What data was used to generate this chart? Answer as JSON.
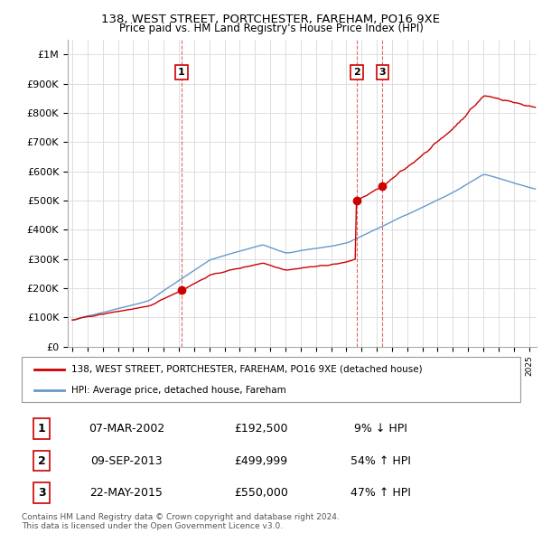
{
  "title": "138, WEST STREET, PORTCHESTER, FAREHAM, PO16 9XE",
  "subtitle": "Price paid vs. HM Land Registry's House Price Index (HPI)",
  "ylim": [
    0,
    1050000
  ],
  "yticks": [
    0,
    100000,
    200000,
    300000,
    400000,
    500000,
    600000,
    700000,
    800000,
    900000,
    1000000
  ],
  "ytick_labels": [
    "£0",
    "£100K",
    "£200K",
    "£300K",
    "£400K",
    "£500K",
    "£600K",
    "£700K",
    "£800K",
    "£900K",
    "£1M"
  ],
  "xlim_start": 1994.7,
  "xlim_end": 2025.5,
  "transactions": [
    {
      "num": 1,
      "date": "07-MAR-2002",
      "price": 192500,
      "year": 2002.18,
      "pct": "9%",
      "dir": "↓"
    },
    {
      "num": 2,
      "date": "09-SEP-2013",
      "price": 499999,
      "year": 2013.69,
      "pct": "54%",
      "dir": "↑"
    },
    {
      "num": 3,
      "date": "22-MAY-2015",
      "price": 550000,
      "year": 2015.38,
      "pct": "47%",
      "dir": "↑"
    }
  ],
  "legend_label_red": "138, WEST STREET, PORTCHESTER, FAREHAM, PO16 9XE (detached house)",
  "legend_label_blue": "HPI: Average price, detached house, Fareham",
  "footer": "Contains HM Land Registry data © Crown copyright and database right 2024.\nThis data is licensed under the Open Government Licence v3.0.",
  "red_color": "#cc0000",
  "blue_color": "#6699cc",
  "vline_color": "#cc0000",
  "grid_color": "#dddddd",
  "dot_color": "#cc0000"
}
